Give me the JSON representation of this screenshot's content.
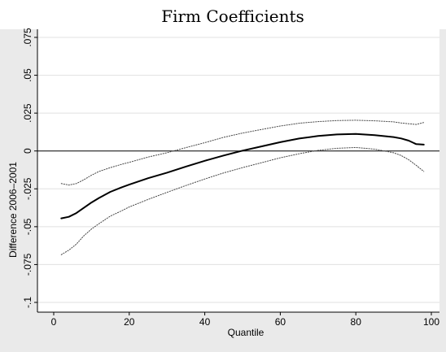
{
  "chart_data": {
    "type": "line",
    "title": "Firm Coefficients",
    "xlabel": "Quantile",
    "ylabel": "Difference 2006–2001",
    "xlim": [
      0,
      100
    ],
    "ylim": [
      -0.1,
      0.075
    ],
    "x_ticks": [
      {
        "value": 0,
        "label": "0"
      },
      {
        "value": 20,
        "label": "20"
      },
      {
        "value": 40,
        "label": "40"
      },
      {
        "value": 60,
        "label": "60"
      },
      {
        "value": 80,
        "label": "80"
      },
      {
        "value": 100,
        "label": "100"
      }
    ],
    "y_ticks": [
      {
        "value": -0.1,
        "label": "-.1"
      },
      {
        "value": -0.075,
        "label": "-.075"
      },
      {
        "value": -0.05,
        "label": "-.05"
      },
      {
        "value": -0.025,
        "label": "-.025"
      },
      {
        "value": 0,
        "label": "0"
      },
      {
        "value": 0.025,
        "label": ".025"
      },
      {
        "value": 0.05,
        "label": ".05"
      },
      {
        "value": 0.075,
        "label": ".075"
      }
    ],
    "grid": "horizontal",
    "legend": "none",
    "reference_line": {
      "y": 0
    },
    "colors": {
      "line": "#000000",
      "band": "#444444",
      "grid": "#e0e0e0",
      "panel": "#ffffff",
      "outer": "#eaeaea"
    },
    "series": [
      {
        "style": "solid",
        "x": [
          2,
          4,
          6,
          8,
          10,
          12,
          15,
          18,
          20,
          25,
          30,
          35,
          40,
          45,
          50,
          55,
          60,
          65,
          70,
          75,
          80,
          85,
          90,
          92,
          94,
          96,
          98
        ],
        "y": [
          -0.0445,
          -0.0435,
          -0.041,
          -0.0375,
          -0.034,
          -0.031,
          -0.027,
          -0.024,
          -0.0222,
          -0.018,
          -0.0143,
          -0.0103,
          -0.0065,
          -0.003,
          0.0002,
          0.003,
          0.0058,
          0.0082,
          0.0099,
          0.0109,
          0.0113,
          0.0105,
          0.0092,
          0.0083,
          0.0068,
          0.0045,
          0.0042
        ]
      },
      {
        "style": "dotted",
        "x": [
          2,
          4,
          6,
          8,
          10,
          12,
          15,
          18,
          20,
          25,
          30,
          35,
          40,
          45,
          50,
          55,
          60,
          65,
          70,
          75,
          80,
          85,
          90,
          92,
          94,
          96,
          98
        ],
        "y": [
          -0.0215,
          -0.0225,
          -0.0215,
          -0.019,
          -0.016,
          -0.0135,
          -0.011,
          -0.0088,
          -0.0075,
          -0.004,
          -0.0012,
          0.0022,
          0.0055,
          0.009,
          0.0118,
          0.0142,
          0.0165,
          0.0183,
          0.0194,
          0.0201,
          0.0203,
          0.0199,
          0.0192,
          0.0185,
          0.018,
          0.0175,
          0.0188
        ]
      },
      {
        "style": "dotted",
        "x": [
          2,
          4,
          6,
          8,
          10,
          12,
          15,
          18,
          20,
          25,
          30,
          35,
          40,
          45,
          50,
          55,
          60,
          65,
          70,
          75,
          80,
          85,
          90,
          92,
          94,
          96,
          98
        ],
        "y": [
          -0.0685,
          -0.0655,
          -0.0615,
          -0.056,
          -0.0515,
          -0.048,
          -0.043,
          -0.0395,
          -0.037,
          -0.032,
          -0.0273,
          -0.0228,
          -0.0185,
          -0.0145,
          -0.011,
          -0.0078,
          -0.0045,
          -0.0018,
          0.0004,
          0.0018,
          0.0023,
          0.0012,
          -0.0012,
          -0.003,
          -0.0058,
          -0.0095,
          -0.0135
        ]
      }
    ]
  }
}
